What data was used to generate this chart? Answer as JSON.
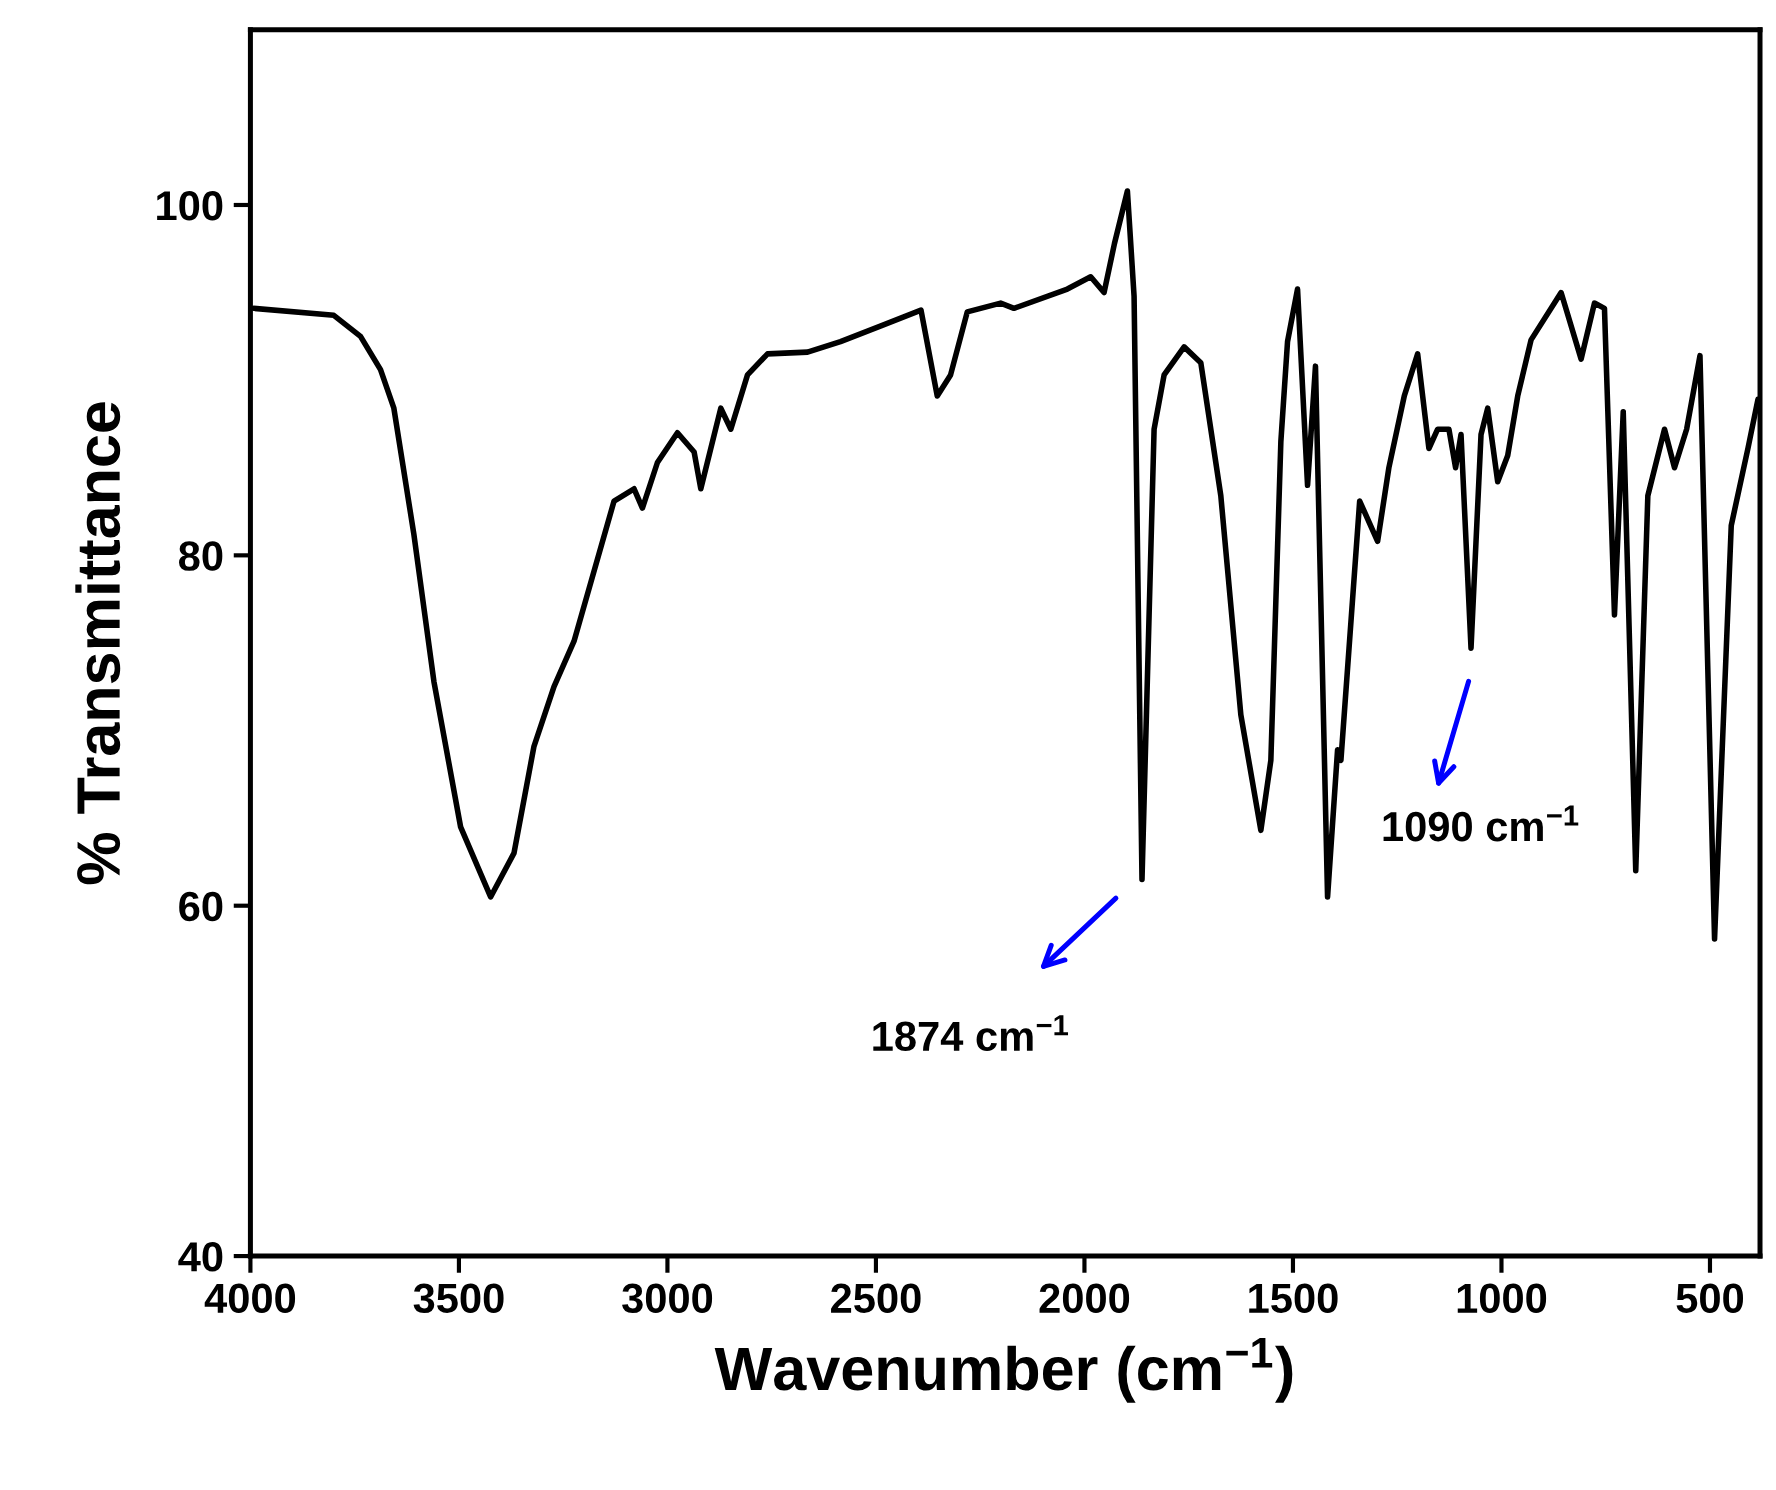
{
  "chart_data": {
    "type": "line",
    "xlabel": "Wavenumber (cm$^{−1}$)",
    "ylabel": "% Transmittance",
    "xlim": [
      4000,
      380
    ],
    "ylim": [
      40,
      110
    ],
    "xticks": [
      4000,
      3500,
      3000,
      2500,
      2000,
      1500,
      1000,
      500
    ],
    "yticks": [
      40,
      60,
      80,
      100
    ],
    "grid": false,
    "legend": false,
    "marker": "none",
    "line_style": "solid",
    "series": [
      {
        "color": "#000000",
        "x": [
          3992,
          3800,
          3736,
          3688,
          3656,
          3608,
          3560,
          3496,
          3424,
          3368,
          3320,
          3272,
          3224,
          3128,
          3080,
          3060,
          3024,
          2976,
          2936,
          2920,
          2872,
          2848,
          2808,
          2760,
          2664,
          2585,
          2488,
          2392,
          2353,
          2321,
          2281,
          2201,
          2169,
          2041,
          1985,
          1953,
          1928,
          1897,
          1881,
          1862,
          1833,
          1809,
          1761,
          1721,
          1673,
          1625,
          1577,
          1553,
          1529,
          1513,
          1489,
          1465,
          1446,
          1417,
          1393,
          1385,
          1340,
          1297,
          1270,
          1233,
          1201,
          1174,
          1153,
          1126,
          1110,
          1097,
          1073,
          1049,
          1033,
          1009,
          985,
          961,
          929,
          857,
          809,
          777,
          753,
          729,
          708,
          678,
          649,
          609,
          585,
          556,
          524,
          489,
          449,
          409,
          385
        ],
        "values": [
          94.1,
          93.7,
          92.5,
          90.6,
          88.4,
          81.2,
          72.8,
          64.5,
          60.5,
          63.0,
          69.1,
          72.5,
          75.1,
          83.1,
          83.8,
          82.7,
          85.3,
          87.0,
          85.9,
          83.8,
          88.4,
          87.2,
          90.3,
          91.5,
          91.6,
          92.2,
          93.1,
          94.0,
          89.1,
          90.3,
          93.9,
          94.4,
          94.1,
          95.2,
          95.9,
          95.0,
          97.8,
          100.8,
          94.8,
          61.5,
          87.2,
          90.3,
          91.9,
          91.0,
          83.4,
          70.9,
          64.3,
          68.3,
          86.5,
          92.2,
          95.2,
          84.0,
          90.8,
          60.5,
          68.9,
          68.3,
          83.1,
          80.8,
          85.0,
          89.1,
          91.5,
          86.1,
          87.2,
          87.2,
          85.0,
          86.9,
          74.7,
          86.9,
          88.4,
          84.2,
          85.7,
          89.1,
          92.3,
          95.0,
          91.2,
          94.4,
          94.1,
          76.6,
          88.2,
          62.0,
          83.4,
          87.2,
          85.0,
          87.2,
          91.4,
          58.1,
          81.7,
          86.1,
          88.9
        ]
      }
    ],
    "annotations": [
      "1874 cm$^{−1}$",
      "1090 cm$^{−1}$"
    ]
  }
}
